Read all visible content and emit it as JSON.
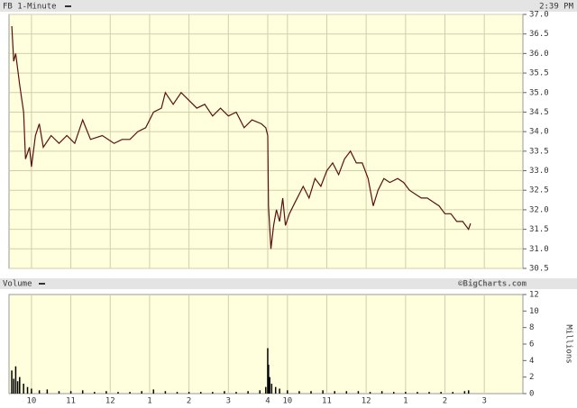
{
  "chart_data": [
    {
      "type": "line",
      "title": "FB 1-Minute",
      "subtitle": "2:39 PM",
      "color": "#5a1010",
      "x": [
        0.0,
        0.05,
        0.1,
        0.2,
        0.3,
        0.35,
        0.45,
        0.5,
        0.6,
        0.7,
        0.8,
        1.0,
        1.2,
        1.4,
        1.6,
        1.8,
        2.0,
        2.3,
        2.6,
        2.8,
        3.0,
        3.2,
        3.4,
        3.6,
        3.8,
        3.9,
        4.1,
        4.3,
        4.5,
        4.7,
        4.9,
        5.1,
        5.3,
        5.5,
        5.7,
        5.9,
        6.1,
        6.34,
        6.45,
        6.5,
        6.52,
        6.58,
        6.65,
        6.72,
        6.8,
        6.88,
        6.95,
        7.05,
        7.2,
        7.4,
        7.55,
        7.7,
        7.85,
        8.0,
        8.15,
        8.3,
        8.45,
        8.6,
        8.75,
        8.9,
        9.05,
        9.18,
        9.3,
        9.45,
        9.6,
        9.8,
        9.95,
        10.1,
        10.25,
        10.4,
        10.55,
        10.7,
        10.85,
        11.0,
        11.15,
        11.3,
        11.45,
        11.6,
        11.65
      ],
      "values": [
        36.7,
        35.8,
        36.0,
        35.2,
        34.5,
        33.3,
        33.6,
        33.1,
        33.9,
        34.2,
        33.6,
        33.9,
        33.7,
        33.9,
        33.7,
        34.3,
        33.8,
        33.9,
        33.7,
        33.8,
        33.8,
        34.0,
        34.1,
        34.5,
        34.6,
        35.0,
        34.7,
        35.0,
        34.8,
        34.6,
        34.7,
        34.4,
        34.6,
        34.4,
        34.5,
        34.1,
        34.3,
        34.2,
        34.1,
        33.9,
        32.1,
        31.0,
        31.6,
        32.0,
        31.7,
        32.3,
        31.6,
        31.9,
        32.2,
        32.6,
        32.3,
        32.8,
        32.6,
        33.0,
        33.2,
        32.9,
        33.3,
        33.5,
        33.2,
        33.2,
        32.8,
        32.1,
        32.5,
        32.8,
        32.7,
        32.8,
        32.7,
        32.5,
        32.4,
        32.3,
        32.3,
        32.2,
        32.1,
        31.9,
        31.9,
        31.7,
        31.7,
        31.5,
        31.65
      ],
      "xlim": [
        -0.07,
        12.98
      ],
      "ylim": [
        30.5,
        37.0
      ],
      "yticks": [
        {
          "value": 30.5,
          "label": "30.5"
        },
        {
          "value": 31,
          "label": "31.0"
        },
        {
          "value": 31.5,
          "label": "31.5"
        },
        {
          "value": 32,
          "label": "32.0"
        },
        {
          "value": 32.5,
          "label": "32.5"
        },
        {
          "value": 33,
          "label": "33.0"
        },
        {
          "value": 33.5,
          "label": "33.5"
        },
        {
          "value": 34,
          "label": "34.0"
        },
        {
          "value": 34.5,
          "label": "34.5"
        },
        {
          "value": 35,
          "label": "35.0"
        },
        {
          "value": 35.5,
          "label": "35.5"
        },
        {
          "value": 36,
          "label": "36.0"
        },
        {
          "value": 36.5,
          "label": "36.5"
        },
        {
          "value": 37,
          "label": "37.0"
        }
      ],
      "grid": true
    },
    {
      "type": "bar",
      "title": "Volume",
      "annotation": "©BigCharts.com",
      "y_label": "Millions",
      "color": "#000000",
      "x": [
        0.0,
        0.05,
        0.1,
        0.15,
        0.2,
        0.3,
        0.4,
        0.5,
        0.7,
        0.9,
        1.2,
        1.5,
        1.8,
        2.1,
        2.4,
        2.7,
        3.0,
        3.3,
        3.6,
        3.9,
        4.2,
        4.5,
        4.8,
        5.1,
        5.4,
        5.7,
        6.0,
        6.3,
        6.45,
        6.5,
        6.52,
        6.55,
        6.6,
        6.7,
        6.8,
        7.0,
        7.3,
        7.6,
        7.9,
        8.2,
        8.5,
        8.8,
        9.1,
        9.4,
        9.7,
        10.0,
        10.3,
        10.6,
        10.9,
        11.2,
        11.5,
        11.6
      ],
      "values": [
        2.8,
        1.8,
        3.3,
        1.5,
        2.0,
        1.2,
        0.8,
        0.6,
        0.4,
        0.5,
        0.3,
        0.3,
        0.4,
        0.2,
        0.3,
        0.2,
        0.2,
        0.3,
        0.5,
        0.3,
        0.2,
        0.2,
        0.2,
        0.2,
        0.3,
        0.2,
        0.3,
        0.4,
        0.8,
        5.5,
        3.5,
        2.0,
        1.2,
        0.8,
        0.6,
        0.4,
        0.3,
        0.3,
        0.4,
        0.3,
        0.3,
        0.3,
        0.2,
        0.3,
        0.2,
        0.2,
        0.2,
        0.2,
        0.2,
        0.2,
        0.3,
        0.4
      ],
      "xlim": [
        -0.07,
        12.98
      ],
      "ylim": [
        0,
        12
      ],
      "yticks": [
        0,
        2,
        4,
        6,
        8,
        10,
        12
      ],
      "xticks": [
        {
          "value": 0.5,
          "label": "10"
        },
        {
          "value": 1.5,
          "label": "11"
        },
        {
          "value": 2.5,
          "label": "12"
        },
        {
          "value": 3.5,
          "label": "1"
        },
        {
          "value": 4.5,
          "label": "2"
        },
        {
          "value": 5.5,
          "label": "3"
        },
        {
          "value": 6.5,
          "label": "4"
        },
        {
          "value": 7.0,
          "label": "10"
        },
        {
          "value": 8.0,
          "label": "11"
        },
        {
          "value": 9.0,
          "label": "12"
        },
        {
          "value": 10.0,
          "label": "1"
        },
        {
          "value": 11.0,
          "label": "2"
        },
        {
          "value": 12.0,
          "label": "3"
        }
      ],
      "grid": true
    }
  ]
}
